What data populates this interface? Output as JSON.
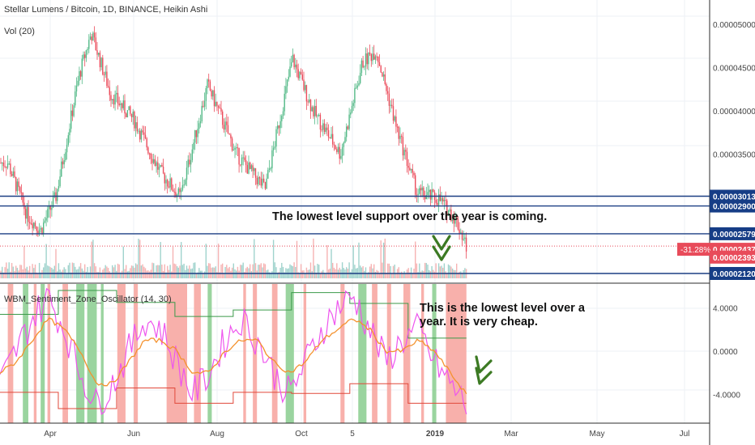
{
  "symbol_title": "Stellar Lumens / Bitcoin, 1D, BINANCE, Heikin Ashi",
  "volume_label": "Vol (20)",
  "oscillator_label": "WBM_Sentiment_Zone_Oscillator (14, 30)",
  "annotations": {
    "support_note": "The lowest level support over the year is coming.",
    "oscillator_note_line1": "This is the lowest level over a",
    "oscillator_note_line2": "year. It is very cheap."
  },
  "colors": {
    "up": "#53b987",
    "down": "#eb4d5c",
    "volume_up": "#8fcbc4",
    "volume_down": "#f5a6a6",
    "level_line": "#1c3f83",
    "last_price_line": "#e84b5a",
    "last_price_badge": "#e84b5a",
    "level_badge": "#163d86",
    "oscillator_line": "#ee55ee",
    "signal_line": "#f4922e",
    "upper_band": "#3b9a4a",
    "lower_band": "#e0483a",
    "zone_green": "#8fcf95",
    "zone_red": "#f7a7a2",
    "arrow": "#3c7a23"
  },
  "chart_data": [
    {
      "type": "candlestick",
      "title": "Stellar Lumens / Bitcoin, 1D, BINANCE, Heikin Ashi",
      "x_tick_labels": [
        "Apr",
        "Jun",
        "Aug",
        "Oct",
        "5",
        "2019",
        "Mar",
        "May",
        "Jul"
      ],
      "y_tick_labels": [
        "0.00005000",
        "0.00004500",
        "0.00004000",
        "0.00003500"
      ],
      "ylim": [
        2.1e-05,
        5.05e-05
      ],
      "price_path_approx": [
        {
          "x": "Mar 1",
          "y": 3.4e-05
        },
        {
          "x": "Mar 15",
          "y": 2.8e-05
        },
        {
          "x": "Mar 25",
          "y": 2.62e-05
        },
        {
          "x": "Apr 5",
          "y": 3e-05
        },
        {
          "x": "Apr 22",
          "y": 4.4e-05
        },
        {
          "x": "May 1",
          "y": 4.9e-05
        },
        {
          "x": "May 15",
          "y": 4.2e-05
        },
        {
          "x": "Jun 1",
          "y": 3.9e-05
        },
        {
          "x": "Jun 20",
          "y": 3.3e-05
        },
        {
          "x": "Jul 5",
          "y": 3e-05
        },
        {
          "x": "Jul 25",
          "y": 4.3e-05
        },
        {
          "x": "Aug 15",
          "y": 3.5e-05
        },
        {
          "x": "Sep 5",
          "y": 3.1e-05
        },
        {
          "x": "Sep 25",
          "y": 4.6e-05
        },
        {
          "x": "Oct 10",
          "y": 4e-05
        },
        {
          "x": "Oct 30",
          "y": 3.5e-05
        },
        {
          "x": "Nov 15",
          "y": 4.55e-05
        },
        {
          "x": "Nov 25",
          "y": 4.7e-05
        },
        {
          "x": "Dec 10",
          "y": 3.8e-05
        },
        {
          "x": "Dec 25",
          "y": 3.05e-05
        },
        {
          "x": "Jan 10",
          "y": 2.98e-05
        },
        {
          "x": "Jan 22",
          "y": 2.75e-05
        },
        {
          "x": "Jan 30",
          "y": 2.437e-05
        }
      ],
      "horizontal_levels": [
        {
          "label": "0.00003013",
          "value": 3.013e-05,
          "style": "solid"
        },
        {
          "label": "0.00002900",
          "value": 2.9e-05,
          "style": "solid"
        },
        {
          "label": "0.00002579",
          "value": 2.579e-05,
          "style": "solid"
        },
        {
          "label": "0.00002120",
          "value": 2.12e-05,
          "style": "solid"
        }
      ],
      "last_price": {
        "label": "0.00002437",
        "value": 2.437e-05,
        "change_label": "-31.28%"
      },
      "extra_axis_label": {
        "label": "0.00002393",
        "value": 2.393e-05
      }
    },
    {
      "type": "oscillator",
      "title": "WBM_Sentiment_Zone_Oscillator (14, 30)",
      "y_tick_labels": [
        "4.0000",
        "0.0000",
        "-4.0000"
      ],
      "ylim": [
        -6.2,
        6.2
      ],
      "series": [
        {
          "values_approx": [
            -3,
            0,
            3,
            5,
            2,
            -2,
            -5,
            -3,
            0,
            3,
            2,
            -1,
            -4,
            -2,
            1,
            3,
            1,
            -2,
            -4,
            -1,
            2,
            4,
            5,
            2,
            -1,
            1,
            2,
            -1,
            -3,
            -5
          ]
        },
        {
          "values_approx": [
            -2,
            -1,
            1,
            3,
            2,
            0,
            -3,
            -3,
            -1,
            1,
            1,
            0,
            -2,
            -2,
            0,
            1,
            1,
            -1,
            -2,
            -1,
            1,
            2,
            3,
            2,
            0,
            0,
            1,
            0,
            -2,
            -4
          ]
        }
      ],
      "upper_band_levels": [
        3.4,
        5.6,
        4.5,
        3.2,
        3.8,
        5.4,
        4.4,
        1.2
      ],
      "lower_band_levels": [
        -3.8,
        -5.3,
        -3.4,
        -4.8,
        -3.8,
        -3.9,
        -3.0,
        -4.8
      ]
    }
  ]
}
